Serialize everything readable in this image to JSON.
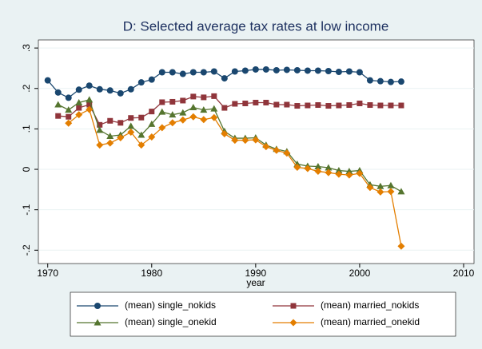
{
  "chart_data": {
    "type": "line",
    "title": "D: Selected average tax rates at low income",
    "x_label": "year",
    "x": [
      1970,
      1971,
      1972,
      1973,
      1974,
      1975,
      1976,
      1977,
      1978,
      1979,
      1980,
      1981,
      1982,
      1983,
      1984,
      1985,
      1986,
      1987,
      1988,
      1989,
      1990,
      1991,
      1992,
      1993,
      1994,
      1995,
      1996,
      1997,
      1998,
      1999,
      2000,
      2001,
      2002,
      2003,
      2004
    ],
    "series": [
      {
        "name": "(mean) single_nokids",
        "color": "#1a476f",
        "marker": "circle",
        "values": [
          0.22,
          0.19,
          0.177,
          0.197,
          0.207,
          0.198,
          0.195,
          0.188,
          0.198,
          0.215,
          0.222,
          0.24,
          0.24,
          0.236,
          0.24,
          0.24,
          0.242,
          0.225,
          0.242,
          0.244,
          0.247,
          0.247,
          0.245,
          0.246,
          0.245,
          0.244,
          0.244,
          0.243,
          0.241,
          0.242,
          0.24,
          0.22,
          0.218,
          0.216,
          0.217
        ]
      },
      {
        "name": "(mean) married_nokids",
        "color": "#90353b",
        "marker": "square",
        "values": [
          null,
          0.132,
          0.13,
          0.152,
          0.16,
          0.11,
          0.12,
          0.115,
          0.127,
          0.128,
          0.143,
          0.166,
          0.167,
          0.17,
          0.18,
          0.178,
          0.181,
          0.152,
          0.162,
          0.163,
          0.165,
          0.165,
          0.16,
          0.16,
          0.157,
          0.158,
          0.159,
          0.157,
          0.158,
          0.159,
          0.163,
          0.159,
          0.158,
          0.158,
          0.158
        ]
      },
      {
        "name": "(mean) single_onekid",
        "color": "#55752f",
        "marker": "triangle",
        "values": [
          null,
          0.16,
          0.147,
          0.165,
          0.172,
          0.097,
          0.082,
          0.085,
          0.107,
          0.085,
          0.112,
          0.142,
          0.135,
          0.14,
          0.153,
          0.147,
          0.15,
          0.094,
          0.077,
          0.077,
          0.078,
          0.06,
          0.05,
          0.044,
          0.013,
          0.008,
          0.007,
          0.004,
          -0.003,
          -0.005,
          -0.003,
          -0.038,
          -0.042,
          -0.04,
          -0.055
        ]
      },
      {
        "name": "(mean) married_onekid",
        "color": "#e37e00",
        "marker": "diamond",
        "values": [
          null,
          null,
          0.114,
          0.135,
          0.148,
          0.06,
          0.065,
          0.078,
          0.092,
          0.06,
          0.08,
          0.103,
          0.115,
          0.122,
          0.13,
          0.123,
          0.128,
          0.088,
          0.072,
          0.072,
          0.073,
          0.056,
          0.047,
          0.04,
          0.005,
          0.002,
          -0.005,
          -0.008,
          -0.012,
          -0.014,
          -0.01,
          -0.045,
          -0.056,
          -0.055,
          -0.19
        ]
      }
    ],
    "xlim": [
      1969.1,
      2011
    ],
    "xticks": [
      1970,
      1980,
      1990,
      2000,
      2010
    ],
    "ylim": [
      -0.233,
      0.32
    ],
    "yticks": [
      {
        "value": -0.2,
        "label": "-.2"
      },
      {
        "value": -0.1,
        "label": "-.1"
      },
      0,
      {
        "value": 0.1,
        "label": ".1"
      },
      {
        "value": 0.2,
        "label": ".2"
      },
      {
        "value": 0.3,
        "label": ".3"
      }
    ],
    "grid": true
  }
}
